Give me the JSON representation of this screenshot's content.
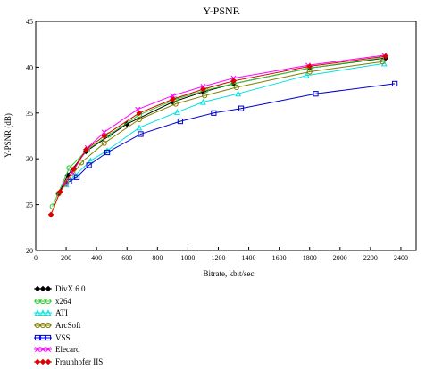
{
  "chart_data": {
    "type": "line",
    "title": "Y-PSNR",
    "xlabel": "Bitrate, kbit/sec",
    "ylabel": "Y-PSNR (dB)",
    "xlim": [
      0,
      2500
    ],
    "ylim": [
      20,
      45
    ],
    "xticks": [
      0,
      200,
      400,
      600,
      800,
      1000,
      1200,
      1400,
      1600,
      1800,
      2000,
      2200,
      2400
    ],
    "yticks": [
      20,
      25,
      30,
      35,
      40,
      45
    ],
    "grid": false,
    "legend_position": "bottom-left",
    "series": [
      {
        "name": "DivX 6.0",
        "color": "#000000",
        "marker": "diamond",
        "x": [
          150,
          210,
          330,
          600,
          900,
          1100,
          1300,
          1800,
          2300
        ],
        "y": [
          26.2,
          28.2,
          30.8,
          33.8,
          36.2,
          37.3,
          38.2,
          39.9,
          41.0
        ]
      },
      {
        "name": "x264",
        "color": "#33cc33",
        "marker": "circle",
        "x": [
          110,
          220,
          340,
          480,
          680,
          920,
          1120,
          1300,
          1800,
          2270
        ],
        "y": [
          24.8,
          29.0,
          31.0,
          32.6,
          34.8,
          36.5,
          37.5,
          38.2,
          39.9,
          41.0
        ]
      },
      {
        "name": "ATI",
        "color": "#00e0e0",
        "marker": "triangle",
        "x": [
          200,
          260,
          360,
          470,
          680,
          930,
          1100,
          1330,
          1780,
          2290
        ],
        "y": [
          27.2,
          28.2,
          29.8,
          30.9,
          33.4,
          35.1,
          36.2,
          37.1,
          39.1,
          40.4
        ]
      },
      {
        "name": "ArcSoft",
        "color": "#808000",
        "marker": "circle",
        "x": [
          150,
          200,
          300,
          450,
          680,
          920,
          1110,
          1320,
          1800,
          2280
        ],
        "y": [
          26.2,
          27.3,
          29.6,
          31.7,
          34.3,
          36.0,
          36.9,
          37.8,
          39.5,
          40.6
        ]
      },
      {
        "name": "VSS",
        "color": "#0000cc",
        "marker": "square",
        "x": [
          220,
          270,
          350,
          470,
          690,
          950,
          1170,
          1350,
          1840,
          2360
        ],
        "y": [
          27.5,
          28.0,
          29.3,
          30.7,
          32.7,
          34.1,
          35.0,
          35.5,
          37.1,
          38.2
        ]
      },
      {
        "name": "Elecard",
        "color": "#ff00ff",
        "marker": "x",
        "x": [
          190,
          240,
          340,
          450,
          670,
          900,
          1100,
          1300,
          1790,
          2290
        ],
        "y": [
          27.3,
          28.5,
          31.2,
          32.9,
          35.4,
          36.9,
          37.9,
          38.8,
          40.2,
          41.3
        ]
      },
      {
        "name": "Fraunhofer IIS",
        "color": "#dd0000",
        "marker": "diamond",
        "x": [
          100,
          160,
          250,
          330,
          450,
          680,
          900,
          1100,
          1300,
          1800,
          2300
        ],
        "y": [
          23.9,
          26.4,
          28.9,
          31.0,
          32.5,
          35.0,
          36.5,
          37.6,
          38.5,
          40.1,
          41.2
        ]
      }
    ]
  }
}
